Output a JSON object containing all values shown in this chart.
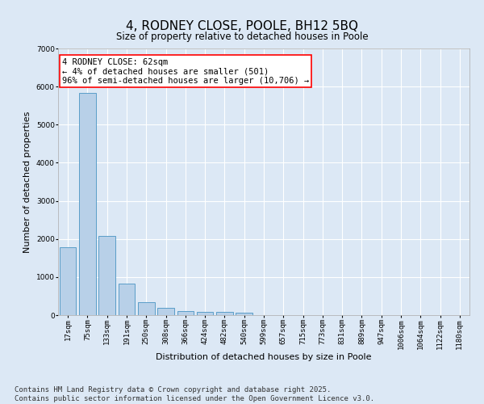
{
  "title": "4, RODNEY CLOSE, POOLE, BH12 5BQ",
  "subtitle": "Size of property relative to detached houses in Poole",
  "xlabel": "Distribution of detached houses by size in Poole",
  "ylabel": "Number of detached properties",
  "categories": [
    "17sqm",
    "75sqm",
    "133sqm",
    "191sqm",
    "250sqm",
    "308sqm",
    "366sqm",
    "424sqm",
    "482sqm",
    "540sqm",
    "599sqm",
    "657sqm",
    "715sqm",
    "773sqm",
    "831sqm",
    "889sqm",
    "947sqm",
    "1006sqm",
    "1064sqm",
    "1122sqm",
    "1180sqm"
  ],
  "values": [
    1780,
    5840,
    2080,
    820,
    340,
    185,
    110,
    95,
    75,
    55,
    0,
    0,
    0,
    0,
    0,
    0,
    0,
    0,
    0,
    0,
    0
  ],
  "bar_color": "#b8d0e8",
  "bar_edge_color": "#5a9ec8",
  "annotation_text": "4 RODNEY CLOSE: 62sqm\n← 4% of detached houses are smaller (501)\n96% of semi-detached houses are larger (10,706) →",
  "annotation_box_color": "#ffffff",
  "annotation_box_edge": "red",
  "ylim": [
    0,
    7000
  ],
  "yticks": [
    0,
    1000,
    2000,
    3000,
    4000,
    5000,
    6000,
    7000
  ],
  "background_color": "#dce8f5",
  "grid_color": "#ffffff",
  "footer_line1": "Contains HM Land Registry data © Crown copyright and database right 2025.",
  "footer_line2": "Contains public sector information licensed under the Open Government Licence v3.0.",
  "title_fontsize": 11,
  "label_fontsize": 8,
  "tick_fontsize": 6.5,
  "footer_fontsize": 6.5,
  "annotation_fontsize": 7.5
}
